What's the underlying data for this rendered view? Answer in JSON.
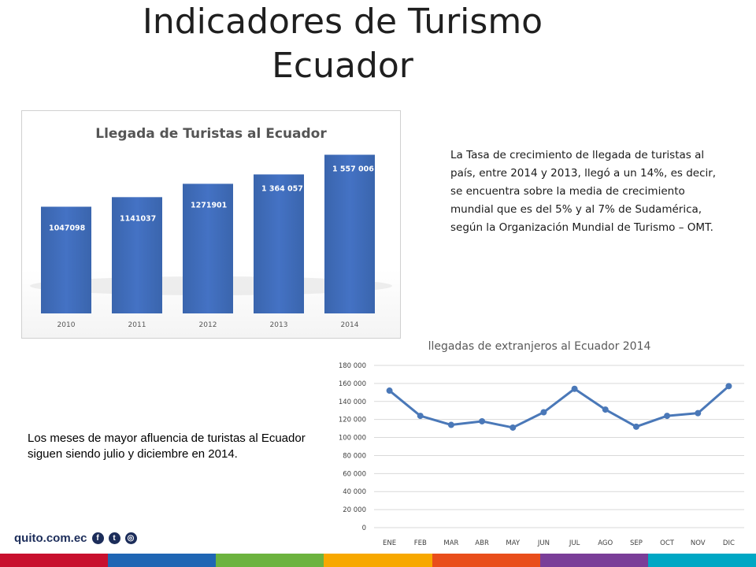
{
  "title": {
    "line1": "Indicadores de Turismo",
    "line2": "Ecuador"
  },
  "paragraph": "La Tasa de crecimiento de llegada de turistas al país, entre 2014 y 2013, llegó a un 14%, es decir, se encuentra sobre la media de crecimiento mundial que es del 5% y al 7% de Sudamérica, según la Organización Mundial de Turismo – OMT.",
  "note": "Los meses de mayor afluencia de turistas al Ecuador siguen siendo julio y diciembre en 2014.",
  "footer": {
    "logo_text": "quito.com.ec",
    "icons": [
      "facebook-icon",
      "twitter-icon",
      "instagram-icon"
    ]
  },
  "colors": {
    "bar": "#4472c4",
    "line": "#4a78b8",
    "logo": "#1c2d5a"
  },
  "chart_data": [
    {
      "type": "bar",
      "title": "Llegada de Turistas al Ecuador",
      "categories": [
        "2010",
        "2011",
        "2012",
        "2013",
        "2014"
      ],
      "values": [
        1047098,
        1141037,
        1271901,
        1364057,
        1557006
      ],
      "data_labels": [
        "1047098",
        "1141037",
        "1271901",
        "1 364 057",
        "1 557 006"
      ],
      "ylim": [
        0,
        1700000
      ],
      "grid": false,
      "legend": false
    },
    {
      "type": "line",
      "title": "llegadas de extranjeros al Ecuador 2014",
      "categories": [
        "ENE",
        "FEB",
        "MAR",
        "ABR",
        "MAY",
        "JUN",
        "JUL",
        "AGO",
        "SEP",
        "OCT",
        "NOV",
        "DIC"
      ],
      "values": [
        152000,
        124000,
        114000,
        118000,
        111000,
        128000,
        154000,
        131000,
        112000,
        124000,
        127000,
        157000
      ],
      "yticks": [
        "0",
        "20 000",
        "40 000",
        "60 000",
        "80 000",
        "100 000",
        "120 000",
        "140 000",
        "160 000",
        "180 000"
      ],
      "ylim": [
        0,
        180000
      ],
      "grid": true,
      "legend": false
    }
  ]
}
